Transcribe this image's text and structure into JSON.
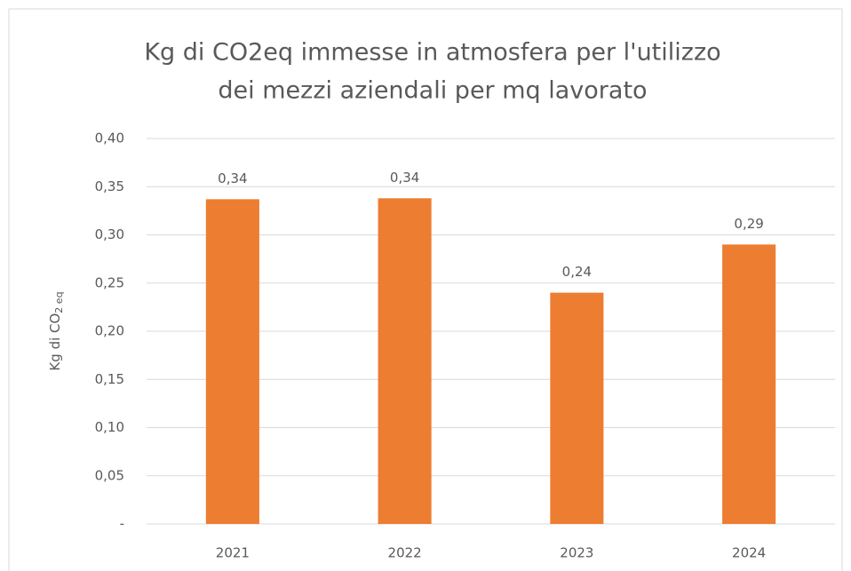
{
  "chart_data": {
    "type": "bar",
    "title": [
      "Kg di CO2eq immesse in atmosfera per l'utilizzo",
      "dei mezzi aziendali per mq lavorato"
    ],
    "ylabel": "Kg di CO",
    "ylabel_subscript": "2 eq",
    "categories": [
      "2021",
      "2022",
      "2023",
      "2024"
    ],
    "values": [
      0.337,
      0.338,
      0.24,
      0.29
    ],
    "value_labels": [
      "0,34",
      "0,34",
      "0,24",
      "0,29"
    ],
    "color": "#ed7d31",
    "ylim": [
      0,
      0.4
    ],
    "yticks": [
      {
        "value": 0,
        "label": "-"
      },
      {
        "value": 0.05,
        "label": "0,05"
      },
      {
        "value": 0.1,
        "label": "0,10"
      },
      {
        "value": 0.15,
        "label": "0,15"
      },
      {
        "value": 0.2,
        "label": "0,20"
      },
      {
        "value": 0.25,
        "label": "0,25"
      },
      {
        "value": 0.3,
        "label": "0,30"
      },
      {
        "value": 0.35,
        "label": "0,35"
      },
      {
        "value": 0.4,
        "label": "0,40"
      }
    ],
    "grid": true
  }
}
